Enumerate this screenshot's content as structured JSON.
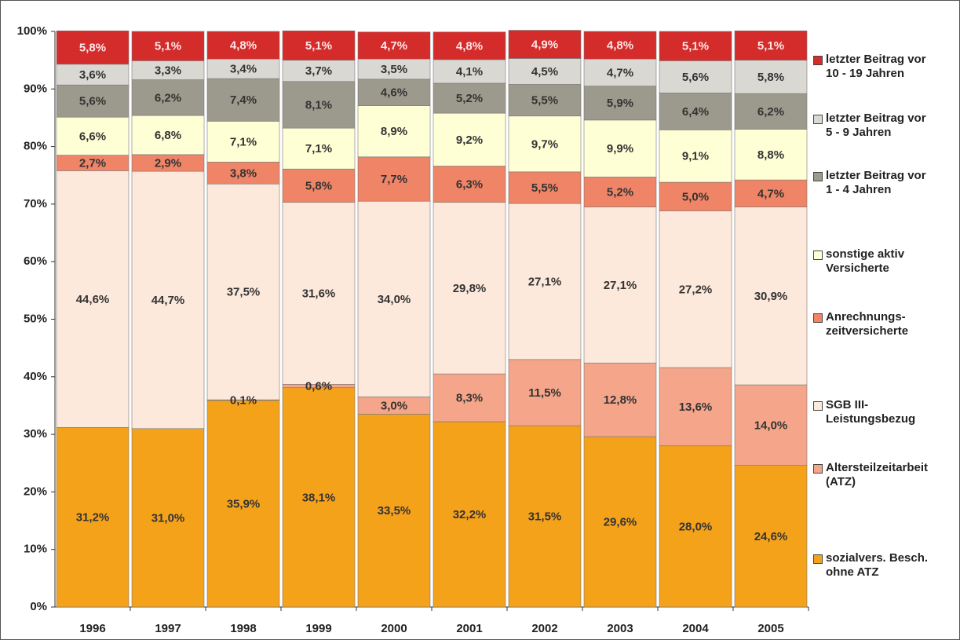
{
  "chart_data": {
    "type": "stacked_bar",
    "categories": [
      "1996",
      "1997",
      "1998",
      "1999",
      "2000",
      "2001",
      "2002",
      "2003",
      "2004",
      "2005"
    ],
    "ylim": [
      0,
      100
    ],
    "yticks": [
      {
        "value": 0,
        "label": "0%"
      },
      {
        "value": 10,
        "label": "10%"
      },
      {
        "value": 20,
        "label": "20%"
      },
      {
        "value": 30,
        "label": "30%"
      },
      {
        "value": 40,
        "label": "40%"
      },
      {
        "value": 50,
        "label": "50%"
      },
      {
        "value": 60,
        "label": "60%"
      },
      {
        "value": 70,
        "label": "70%"
      },
      {
        "value": 80,
        "label": "80%"
      },
      {
        "value": 90,
        "label": "90%"
      },
      {
        "value": 100,
        "label": "100%"
      }
    ],
    "series": [
      {
        "name": "sozialvers. Besch.\nohne ATZ",
        "color": "#f5a21b",
        "label_color": "#333333",
        "values": [
          31.2,
          31.0,
          35.9,
          38.1,
          33.5,
          32.2,
          31.5,
          29.6,
          28.0,
          24.6
        ],
        "value_labels": [
          "31,2%",
          "31,0%",
          "35,9%",
          "38,1%",
          "33,5%",
          "32,2%",
          "31,5%",
          "29,6%",
          "28,0%",
          "24,6%"
        ]
      },
      {
        "name": "Altersteilzeitarbeit\n(ATZ)",
        "color": "#f4a58a",
        "label_color": "#333333",
        "values": [
          null,
          null,
          0.1,
          0.6,
          3.0,
          8.3,
          11.5,
          12.8,
          13.6,
          14.0
        ],
        "value_labels": [
          null,
          null,
          "0,1%",
          "0,6%",
          "3,0%",
          "8,3%",
          "11,5%",
          "12,8%",
          "13,6%",
          "14,0%"
        ]
      },
      {
        "name": "SGB III-\nLeistungsbezug",
        "color": "#fde9db",
        "label_color": "#333333",
        "values": [
          44.6,
          44.7,
          37.5,
          31.6,
          34.0,
          29.8,
          27.1,
          27.1,
          27.2,
          30.9
        ],
        "value_labels": [
          "44,6%",
          "44,7%",
          "37,5%",
          "31,6%",
          "34,0%",
          "29,8%",
          "27,1%",
          "27,1%",
          "27,2%",
          "30,9%"
        ]
      },
      {
        "name": "Anrechnungs-\nzeitversicherte",
        "color": "#ef8466",
        "label_color": "#333333",
        "values": [
          2.7,
          2.9,
          3.8,
          5.8,
          7.7,
          6.3,
          5.5,
          5.2,
          5.0,
          4.7
        ],
        "value_labels": [
          "2,7%",
          "2,9%",
          "3,8%",
          "5,8%",
          "7,7%",
          "6,3%",
          "5,5%",
          "5,2%",
          "5,0%",
          "4,7%"
        ]
      },
      {
        "name": "sonstige aktiv\nVersicherte",
        "color": "#ffffd6",
        "label_color": "#333333",
        "values": [
          6.6,
          6.8,
          7.1,
          7.1,
          8.9,
          9.2,
          9.7,
          9.9,
          9.1,
          8.8
        ],
        "value_labels": [
          "6,6%",
          "6,8%",
          "7,1%",
          "7,1%",
          "8,9%",
          "9,2%",
          "9,7%",
          "9,9%",
          "9,1%",
          "8,8%"
        ]
      },
      {
        "name": "letzter Beitrag vor\n1 - 4 Jahren",
        "color": "#9c9a8c",
        "label_color": "#333333",
        "values": [
          5.6,
          6.2,
          7.4,
          8.1,
          4.6,
          5.2,
          5.5,
          5.9,
          6.4,
          6.2
        ],
        "value_labels": [
          "5,6%",
          "6,2%",
          "7,4%",
          "8,1%",
          "4,6%",
          "5,2%",
          "5,5%",
          "5,9%",
          "6,4%",
          "6,2%"
        ]
      },
      {
        "name": "letzter Beitrag vor\n5 - 9 Jahren",
        "color": "#d9d8d3",
        "label_color": "#333333",
        "values": [
          3.6,
          3.3,
          3.4,
          3.7,
          3.5,
          4.1,
          4.5,
          4.7,
          5.6,
          5.8
        ],
        "value_labels": [
          "3,6%",
          "3,3%",
          "3,4%",
          "3,7%",
          "3,5%",
          "4,1%",
          "4,5%",
          "4,7%",
          "5,6%",
          "5,8%"
        ]
      },
      {
        "name": "letzter Beitrag vor\n10 - 19 Jahren",
        "color": "#d42b2b",
        "label_color": "#ffe8e8",
        "values": [
          5.8,
          5.1,
          4.8,
          5.1,
          4.7,
          4.8,
          4.9,
          4.8,
          5.1,
          5.1
        ],
        "value_labels": [
          "5,8%",
          "5,1%",
          "4,8%",
          "5,1%",
          "4,7%",
          "4,8%",
          "4,9%",
          "4,8%",
          "5,1%",
          "5,1%"
        ]
      }
    ]
  }
}
